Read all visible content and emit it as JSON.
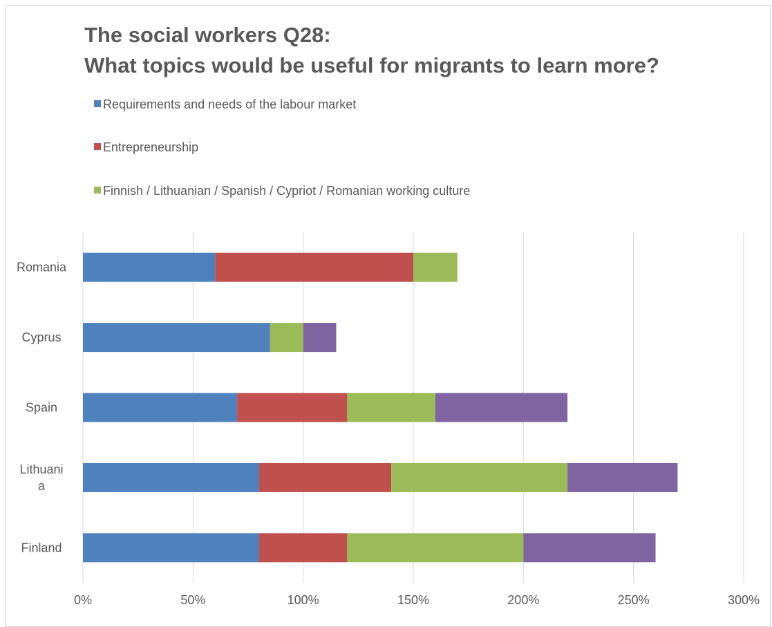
{
  "chart_data": {
    "type": "bar",
    "orientation": "horizontal",
    "stacked": true,
    "title_lines": [
      "The social workers Q28:",
      "What topics would be useful for migrants to learn more?"
    ],
    "categories": [
      "Romania",
      "Cyprus",
      "Spain",
      "Lithuani|a",
      "Finland"
    ],
    "category_label_lines": [
      [
        "Romania"
      ],
      [
        "Cyprus"
      ],
      [
        "Spain"
      ],
      [
        "Lithuani",
        "a"
      ],
      [
        "Finland"
      ]
    ],
    "series": [
      {
        "name": "Requirements and needs of the labour market",
        "color": "#4f81bd",
        "values": [
          60,
          85,
          70,
          80,
          80
        ]
      },
      {
        "name": "Entrepreneurship",
        "color": "#c0504d",
        "values": [
          90,
          0,
          50,
          60,
          40
        ]
      },
      {
        "name": "Finnish / Lithuanian / Spanish / Cypriot / Romanian working culture",
        "color": "#9bbb59",
        "values": [
          20,
          15,
          40,
          80,
          80
        ]
      },
      {
        "color": "#8064a2",
        "values": [
          0,
          15,
          60,
          50,
          60
        ]
      }
    ],
    "xlim": [
      0,
      300
    ],
    "xticks": [
      0,
      50,
      100,
      150,
      200,
      250,
      300
    ],
    "xtick_labels": [
      "0%",
      "50%",
      "100%",
      "150%",
      "200%",
      "250%",
      "300%"
    ],
    "xlabel": "",
    "ylabel": "",
    "grid": "vertical",
    "legend_position": "top"
  }
}
